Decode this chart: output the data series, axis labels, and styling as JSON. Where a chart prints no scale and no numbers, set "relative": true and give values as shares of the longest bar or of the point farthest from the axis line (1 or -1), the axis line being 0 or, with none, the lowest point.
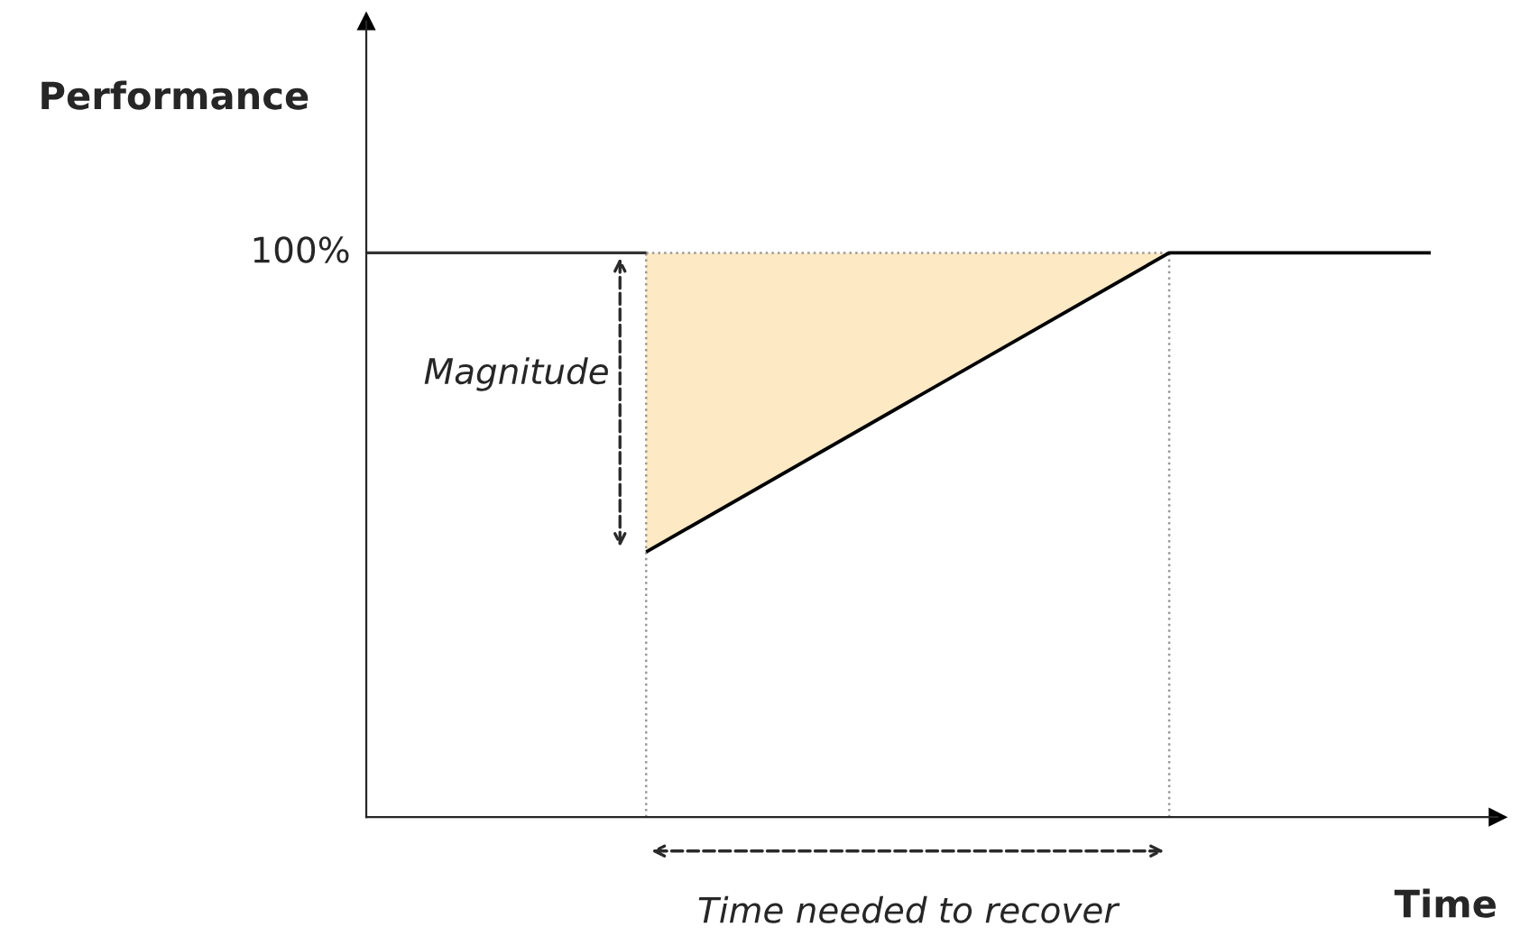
{
  "chart_data": {
    "type": "line",
    "relative": true,
    "xlabel": "Time",
    "ylabel": "Performance",
    "categories": [
      null,
      null,
      null,
      null
    ],
    "series": [
      {
        "color": "#000000",
        "values": [
          0.47,
          0.735,
          1,
          1
        ],
        "lower": [
          0.47,
          0.735,
          1,
          null
        ],
        "upper": [
          1,
          1,
          1,
          null
        ]
      }
    ],
    "ref_lines": [
      {
        "axis": "y",
        "value": 1,
        "label": "100%",
        "color": "#333333"
      }
    ],
    "annotations": [
      "Magnitude",
      "Time needed to recover"
    ],
    "legend": false,
    "grid": false
  }
}
